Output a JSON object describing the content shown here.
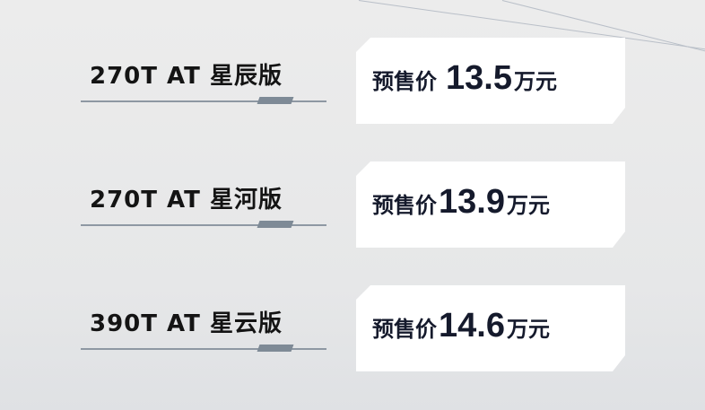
{
  "items": [
    {
      "model": "270T AT 星辰版",
      "price_label": "预售价",
      "price": "13.5",
      "unit": "万元"
    },
    {
      "model": "270T AT 星河版",
      "price_label": "预售价",
      "price": "13.9",
      "unit": "万元"
    },
    {
      "model": "390T AT 星云版",
      "price_label": "预售价",
      "price": "14.6",
      "unit": "万元"
    }
  ]
}
